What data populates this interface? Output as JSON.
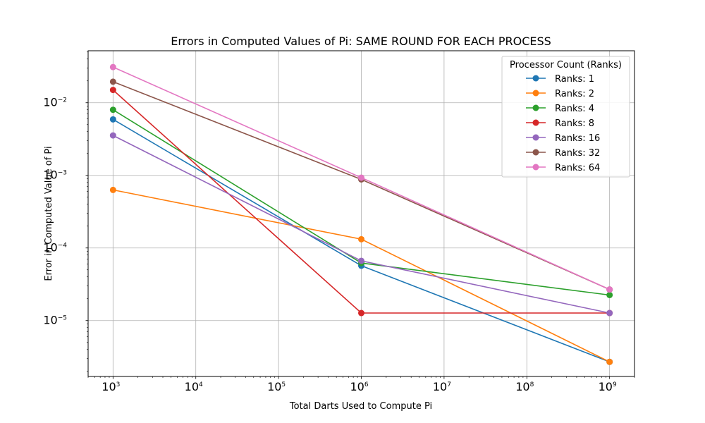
{
  "chart_data": {
    "type": "line",
    "title": "Errors in Computed Values of Pi: SAME ROUND FOR EACH PROCESS",
    "xlabel": "Total Darts Used to Compute Pi",
    "ylabel": "Error in Computed Value of Pi",
    "x_scale": "log",
    "y_scale": "log",
    "xlim": [
      500,
      2000000000
    ],
    "ylim": [
      1.7e-06,
      0.052
    ],
    "x_ticks": [
      {
        "value": 1000,
        "base": "10",
        "exp": "3"
      },
      {
        "value": 10000,
        "base": "10",
        "exp": "4"
      },
      {
        "value": 100000,
        "base": "10",
        "exp": "5"
      },
      {
        "value": 1000000,
        "base": "10",
        "exp": "6"
      },
      {
        "value": 10000000,
        "base": "10",
        "exp": "7"
      },
      {
        "value": 100000000,
        "base": "10",
        "exp": "8"
      },
      {
        "value": 1000000000,
        "base": "10",
        "exp": "9"
      }
    ],
    "y_ticks": [
      {
        "value": 1e-05,
        "base": "10",
        "exp": "−5"
      },
      {
        "value": 0.0001,
        "base": "10",
        "exp": "−4"
      },
      {
        "value": 0.001,
        "base": "10",
        "exp": "−3"
      },
      {
        "value": 0.01,
        "base": "10",
        "exp": "−2"
      }
    ],
    "grid": true,
    "legend_title": "Processor Count (Ranks)",
    "legend_position": "top-right",
    "x": [
      1000,
      1000000,
      1000000000
    ],
    "series": [
      {
        "name": "Ranks: 1",
        "color": "#1f77b4",
        "values": [
          0.0059,
          5.7e-05,
          2.7e-06
        ]
      },
      {
        "name": "Ranks: 2",
        "color": "#ff7f0e",
        "values": [
          0.00063,
          0.000132,
          2.7e-06
        ]
      },
      {
        "name": "Ranks: 4",
        "color": "#2ca02c",
        "values": [
          0.008,
          6.2e-05,
          2.25e-05
        ]
      },
      {
        "name": "Ranks: 8",
        "color": "#d62728",
        "values": [
          0.015,
          1.27e-05,
          1.27e-05
        ]
      },
      {
        "name": "Ranks: 16",
        "color": "#9467bd",
        "values": [
          0.00355,
          6.65e-05,
          1.27e-05
        ]
      },
      {
        "name": "Ranks: 32",
        "color": "#8c564b",
        "values": [
          0.0195,
          0.00088,
          2.68e-05
        ]
      },
      {
        "name": "Ranks: 64",
        "color": "#e377c2",
        "values": [
          0.031,
          0.00093,
          2.68e-05
        ]
      }
    ]
  }
}
